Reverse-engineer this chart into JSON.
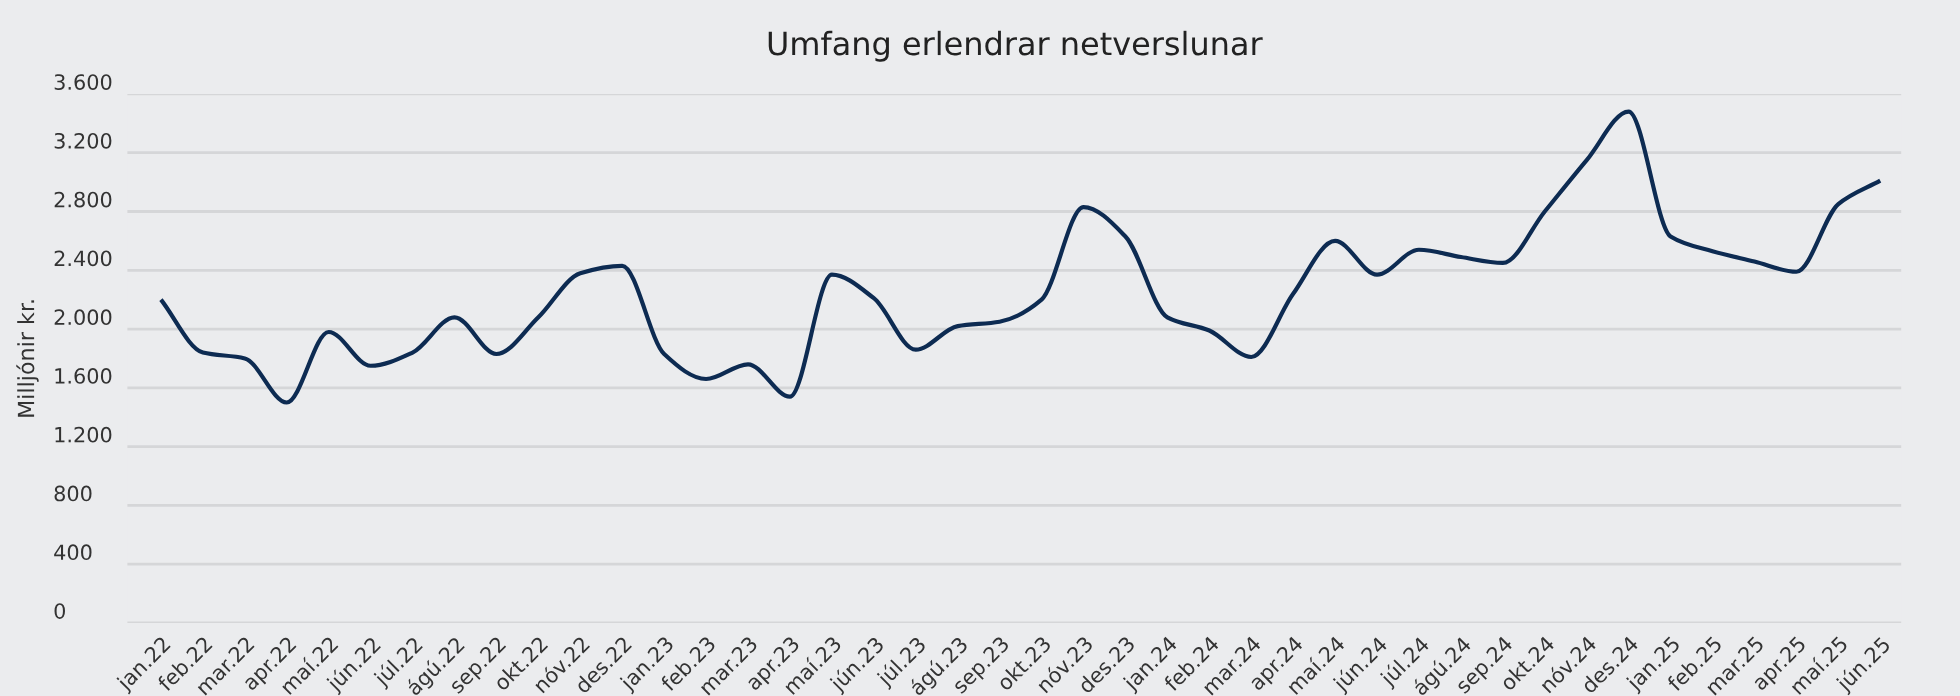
{
  "chart_data": {
    "type": "line",
    "title": "Umfang erlendrar netverslunar",
    "ylabel": "Milljónir kr.",
    "categories": [
      "jan.22",
      "feb.22",
      "mar.22",
      "apr.22",
      "maí.22",
      "jún.22",
      "júl.22",
      "ágú.22",
      "sep.22",
      "okt.22",
      "nóv.22",
      "des.22",
      "jan.23",
      "feb.23",
      "mar.23",
      "apr.23",
      "maí.23",
      "jún.23",
      "júl.23",
      "ágú.23",
      "sep.23",
      "okt.23",
      "nóv.23",
      "des.23",
      "jan.24",
      "feb.24",
      "mar.24",
      "apr.24",
      "maí.24",
      "jún.24",
      "júl.24",
      "ágú.24",
      "sep.24",
      "okt.24",
      "nóv.24",
      "des.24",
      "jan.25",
      "feb.25",
      "mar.25",
      "apr.25",
      "maí.25",
      "jún.25"
    ],
    "series": [
      {
        "color": "#0d2b52",
        "values": [
          2200,
          1840,
          1800,
          1500,
          1980,
          1750,
          1840,
          2080,
          1830,
          2080,
          2380,
          2430,
          1830,
          1660,
          1760,
          1540,
          2370,
          2210,
          1860,
          2020,
          2050,
          2200,
          2830,
          2630,
          2080,
          1990,
          1810,
          2240,
          2600,
          2370,
          2540,
          2490,
          2450,
          2800,
          3150,
          3480,
          2630,
          2530,
          2460,
          2390,
          2850,
          3010
        ]
      }
    ],
    "ylim": [
      0,
      3600
    ],
    "yticks": [
      0,
      400,
      800,
      {
        "value": 1200,
        "label": "1.200"
      },
      {
        "value": 1600,
        "label": "1.600"
      },
      {
        "value": 2000,
        "label": "2.000"
      },
      {
        "value": 2400,
        "label": "2.400"
      },
      {
        "value": 2800,
        "label": "2.800"
      },
      {
        "value": 3200,
        "label": "3.200"
      },
      {
        "value": 3600,
        "label": "3.600"
      }
    ],
    "grid": "y",
    "line_style": "solid",
    "marker": "none"
  }
}
